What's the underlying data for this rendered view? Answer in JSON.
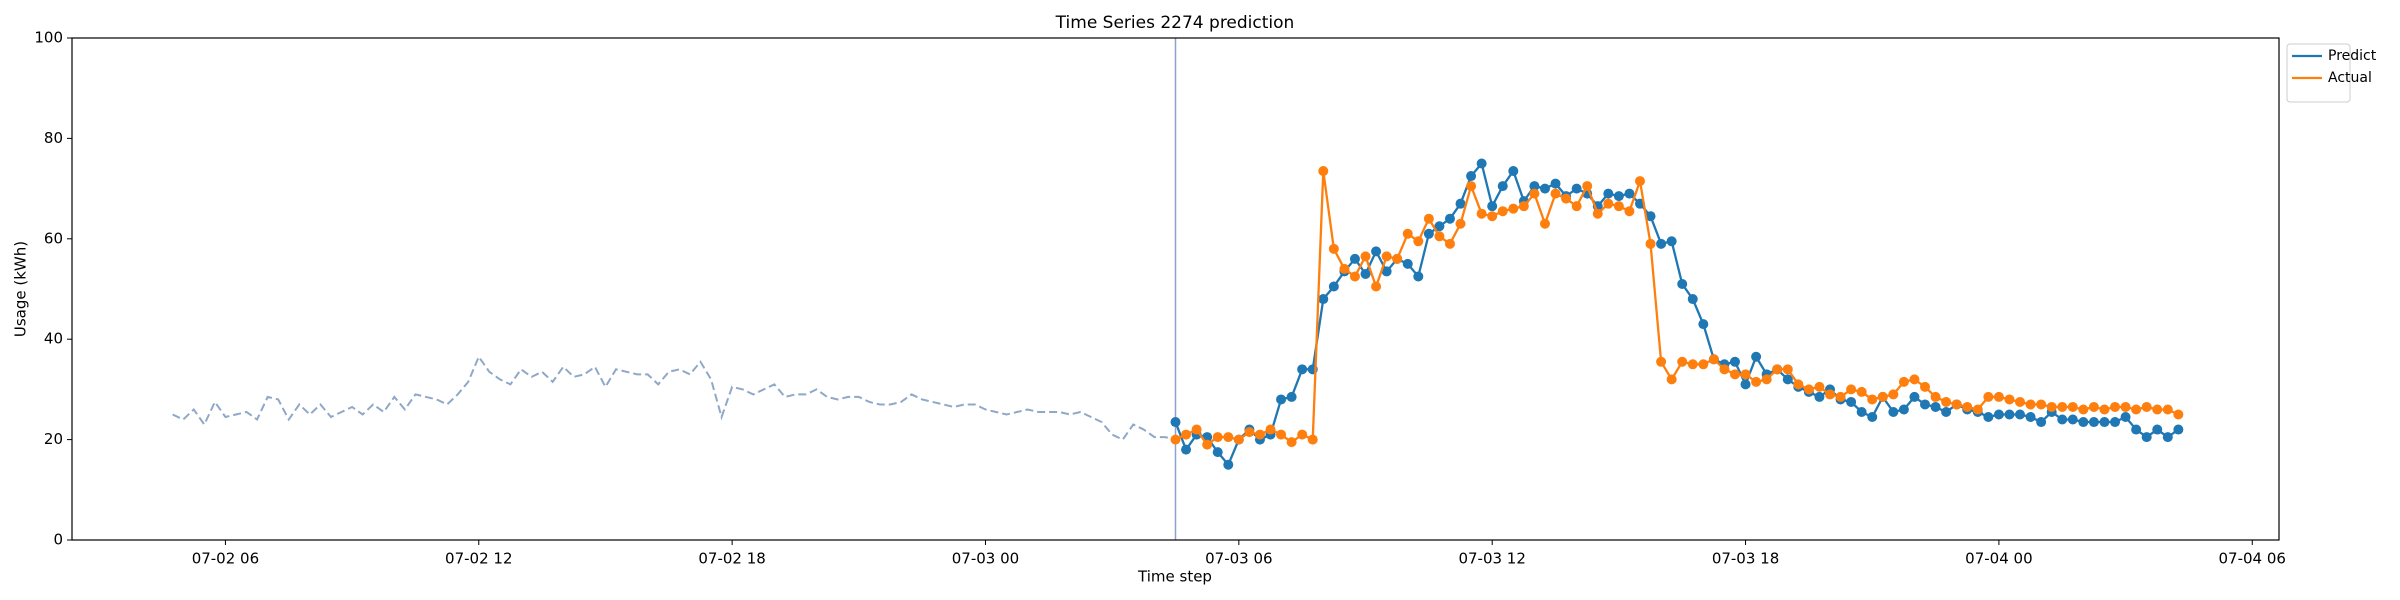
{
  "chart_data": {
    "type": "line",
    "title": "Time Series 2274 prediction",
    "xlabel": "Time step",
    "ylabel": "Usage (kWh)",
    "xlim": [
      "07-02 02:22",
      "07-04 06:38"
    ],
    "xticks": [
      "07-02 06",
      "07-02 12",
      "07-02 18",
      "07-03 00",
      "07-03 06",
      "07-03 12",
      "07-03 18",
      "07-04 00",
      "07-04 06"
    ],
    "ylim": [
      0,
      100
    ],
    "yticks": [
      0,
      20,
      40,
      60,
      80,
      100
    ],
    "vline": "07-03 04:30",
    "vline_color": "#8ea1d0",
    "legend": "outside upper right",
    "history": {
      "color": "#8fa8c8",
      "x": [
        "07-02 04:45",
        "07-02 05:00",
        "07-02 05:15",
        "07-02 05:30",
        "07-02 05:45",
        "07-02 06:00",
        "07-02 06:15",
        "07-02 06:30",
        "07-02 06:45",
        "07-02 07:00",
        "07-02 07:15",
        "07-02 07:30",
        "07-02 07:45",
        "07-02 08:00",
        "07-02 08:15",
        "07-02 08:30",
        "07-02 08:45",
        "07-02 09:00",
        "07-02 09:15",
        "07-02 09:30",
        "07-02 09:45",
        "07-02 10:00",
        "07-02 10:15",
        "07-02 10:30",
        "07-02 10:45",
        "07-02 11:00",
        "07-02 11:15",
        "07-02 11:30",
        "07-02 11:45",
        "07-02 12:00",
        "07-02 12:15",
        "07-02 12:30",
        "07-02 12:45",
        "07-02 13:00",
        "07-02 13:15",
        "07-02 13:30",
        "07-02 13:45",
        "07-02 14:00",
        "07-02 14:15",
        "07-02 14:30",
        "07-02 14:45",
        "07-02 15:00",
        "07-02 15:15",
        "07-02 15:30",
        "07-02 15:45",
        "07-02 16:00",
        "07-02 16:15",
        "07-02 16:30",
        "07-02 16:45",
        "07-02 17:00",
        "07-02 17:15",
        "07-02 17:30",
        "07-02 17:45",
        "07-02 18:00",
        "07-02 18:15",
        "07-02 18:30",
        "07-02 18:45",
        "07-02 19:00",
        "07-02 19:15",
        "07-02 19:30",
        "07-02 19:45",
        "07-02 20:00",
        "07-02 20:15",
        "07-02 20:30",
        "07-02 20:45",
        "07-02 21:00",
        "07-02 21:15",
        "07-02 21:30",
        "07-02 21:45",
        "07-02 22:00",
        "07-02 22:15",
        "07-02 22:30",
        "07-02 22:45",
        "07-02 23:00",
        "07-02 23:15",
        "07-02 23:30",
        "07-02 23:45",
        "07-03 00:00",
        "07-03 00:15",
        "07-03 00:30",
        "07-03 00:45",
        "07-03 01:00",
        "07-03 01:15",
        "07-03 01:30",
        "07-03 01:45",
        "07-03 02:00",
        "07-03 02:15",
        "07-03 02:30",
        "07-03 02:45",
        "07-03 03:00",
        "07-03 03:15",
        "07-03 03:30",
        "07-03 03:45",
        "07-03 04:00",
        "07-03 04:15",
        "07-03 04:30"
      ],
      "values": [
        25,
        24,
        26,
        23,
        27.5,
        24.5,
        25,
        25.5,
        24,
        28.5,
        28,
        24,
        27,
        25,
        27,
        24.5,
        25.5,
        26.5,
        25,
        27,
        25.5,
        28.5,
        26,
        29,
        28.5,
        28,
        27,
        29,
        31.5,
        36.5,
        33.5,
        32,
        31,
        34,
        32.5,
        33.5,
        31.5,
        34.5,
        32.5,
        33,
        34.5,
        30.5,
        34,
        33.5,
        33,
        33,
        31,
        33.5,
        34,
        33,
        35.5,
        32,
        24.5,
        30.5,
        30,
        29,
        30,
        31,
        28.5,
        29,
        29,
        30,
        28.5,
        28,
        28.5,
        28.5,
        27.5,
        27,
        27,
        27.5,
        29,
        28,
        27.5,
        27,
        26.5,
        27,
        27,
        26,
        25.5,
        25,
        25.5,
        26,
        25.5,
        25.5,
        25.5,
        25,
        25.5,
        24.5,
        23.5,
        21,
        20,
        23,
        22,
        20.5,
        20.5,
        20
      ]
    },
    "x": [
      "07-03 04:30",
      "07-03 04:45",
      "07-03 05:00",
      "07-03 05:15",
      "07-03 05:30",
      "07-03 05:45",
      "07-03 06:00",
      "07-03 06:15",
      "07-03 06:30",
      "07-03 06:45",
      "07-03 07:00",
      "07-03 07:15",
      "07-03 07:30",
      "07-03 07:45",
      "07-03 08:00",
      "07-03 08:15",
      "07-03 08:30",
      "07-03 08:45",
      "07-03 09:00",
      "07-03 09:15",
      "07-03 09:30",
      "07-03 09:45",
      "07-03 10:00",
      "07-03 10:15",
      "07-03 10:30",
      "07-03 10:45",
      "07-03 11:00",
      "07-03 11:15",
      "07-03 11:30",
      "07-03 11:45",
      "07-03 12:00",
      "07-03 12:15",
      "07-03 12:30",
      "07-03 12:45",
      "07-03 13:00",
      "07-03 13:15",
      "07-03 13:30",
      "07-03 13:45",
      "07-03 14:00",
      "07-03 14:15",
      "07-03 14:30",
      "07-03 14:45",
      "07-03 15:00",
      "07-03 15:15",
      "07-03 15:30",
      "07-03 15:45",
      "07-03 16:00",
      "07-03 16:15",
      "07-03 16:30",
      "07-03 16:45",
      "07-03 17:00",
      "07-03 17:15",
      "07-03 17:30",
      "07-03 17:45",
      "07-03 18:00",
      "07-03 18:15",
      "07-03 18:30",
      "07-03 18:45",
      "07-03 19:00",
      "07-03 19:15",
      "07-03 19:30",
      "07-03 19:45",
      "07-03 20:00",
      "07-03 20:15",
      "07-03 20:30",
      "07-03 20:45",
      "07-03 21:00",
      "07-03 21:15",
      "07-03 21:30",
      "07-03 21:45",
      "07-03 22:00",
      "07-03 22:15",
      "07-03 22:30",
      "07-03 22:45",
      "07-03 23:00",
      "07-03 23:15",
      "07-03 23:30",
      "07-03 23:45",
      "07-04 00:00",
      "07-04 00:15",
      "07-04 00:30",
      "07-04 00:45",
      "07-04 01:00",
      "07-04 01:15",
      "07-04 01:30",
      "07-04 01:45",
      "07-04 02:00",
      "07-04 02:15",
      "07-04 02:30",
      "07-04 02:45",
      "07-04 03:00",
      "07-04 03:15",
      "07-04 03:30",
      "07-04 03:45",
      "07-04 04:00",
      "07-04 04:15"
    ],
    "series": [
      {
        "name": "Predict",
        "color": "#1f77b4",
        "values": [
          23.5,
          18,
          21,
          20.5,
          17.5,
          15,
          20,
          22,
          20,
          21,
          28,
          28.5,
          34,
          34,
          48,
          50.5,
          53.5,
          56,
          53,
          57.5,
          53.5,
          56,
          55,
          52.5,
          61,
          62.5,
          64,
          67,
          72.5,
          75,
          66.5,
          70.5,
          73.5,
          67.5,
          70.5,
          70,
          71,
          68.5,
          70,
          69,
          66.5,
          69,
          68.5,
          69,
          67,
          64.5,
          59,
          59.5,
          51,
          48,
          43,
          36,
          35,
          35.5,
          31,
          36.5,
          33,
          34,
          32,
          30.5,
          29.5,
          28.5,
          30,
          28,
          27.5,
          25.5,
          24.5,
          28.5,
          25.5,
          26,
          28.5,
          27,
          26.5,
          25.5,
          27,
          26,
          25.5,
          24.5,
          25,
          25,
          25,
          24.5,
          23.5,
          25.5,
          24,
          24,
          23.5,
          23.5,
          23.5,
          23.5,
          24.5,
          22,
          20.5,
          22,
          20.5,
          22
        ]
      },
      {
        "name": "Actual",
        "color": "#ff7f0e",
        "values": [
          20,
          21,
          22,
          19,
          20.5,
          20.5,
          20,
          21.5,
          21,
          22,
          21,
          19.5,
          21,
          20,
          73.5,
          58,
          54,
          52.5,
          56.5,
          50.5,
          56.5,
          56,
          61,
          59.5,
          64,
          60.5,
          59,
          63,
          70.5,
          65,
          64.5,
          65.5,
          66,
          66.5,
          69,
          63,
          69,
          68,
          66.5,
          70.5,
          65,
          67,
          66.5,
          65.5,
          71.5,
          59,
          35.5,
          32,
          35.5,
          35,
          35,
          36,
          34,
          33,
          33,
          31.5,
          32,
          34,
          34,
          31,
          30,
          30.5,
          29,
          28.5,
          30,
          29.5,
          28,
          28.5,
          29,
          31.5,
          32,
          30.5,
          28.5,
          27.5,
          27,
          26.5,
          26,
          28.5,
          28.5,
          28,
          27.5,
          27,
          27,
          26.5,
          26.5,
          26.5,
          26,
          26.5,
          26,
          26.5,
          26.5,
          26,
          26.5,
          26,
          26,
          25
        ]
      }
    ]
  }
}
